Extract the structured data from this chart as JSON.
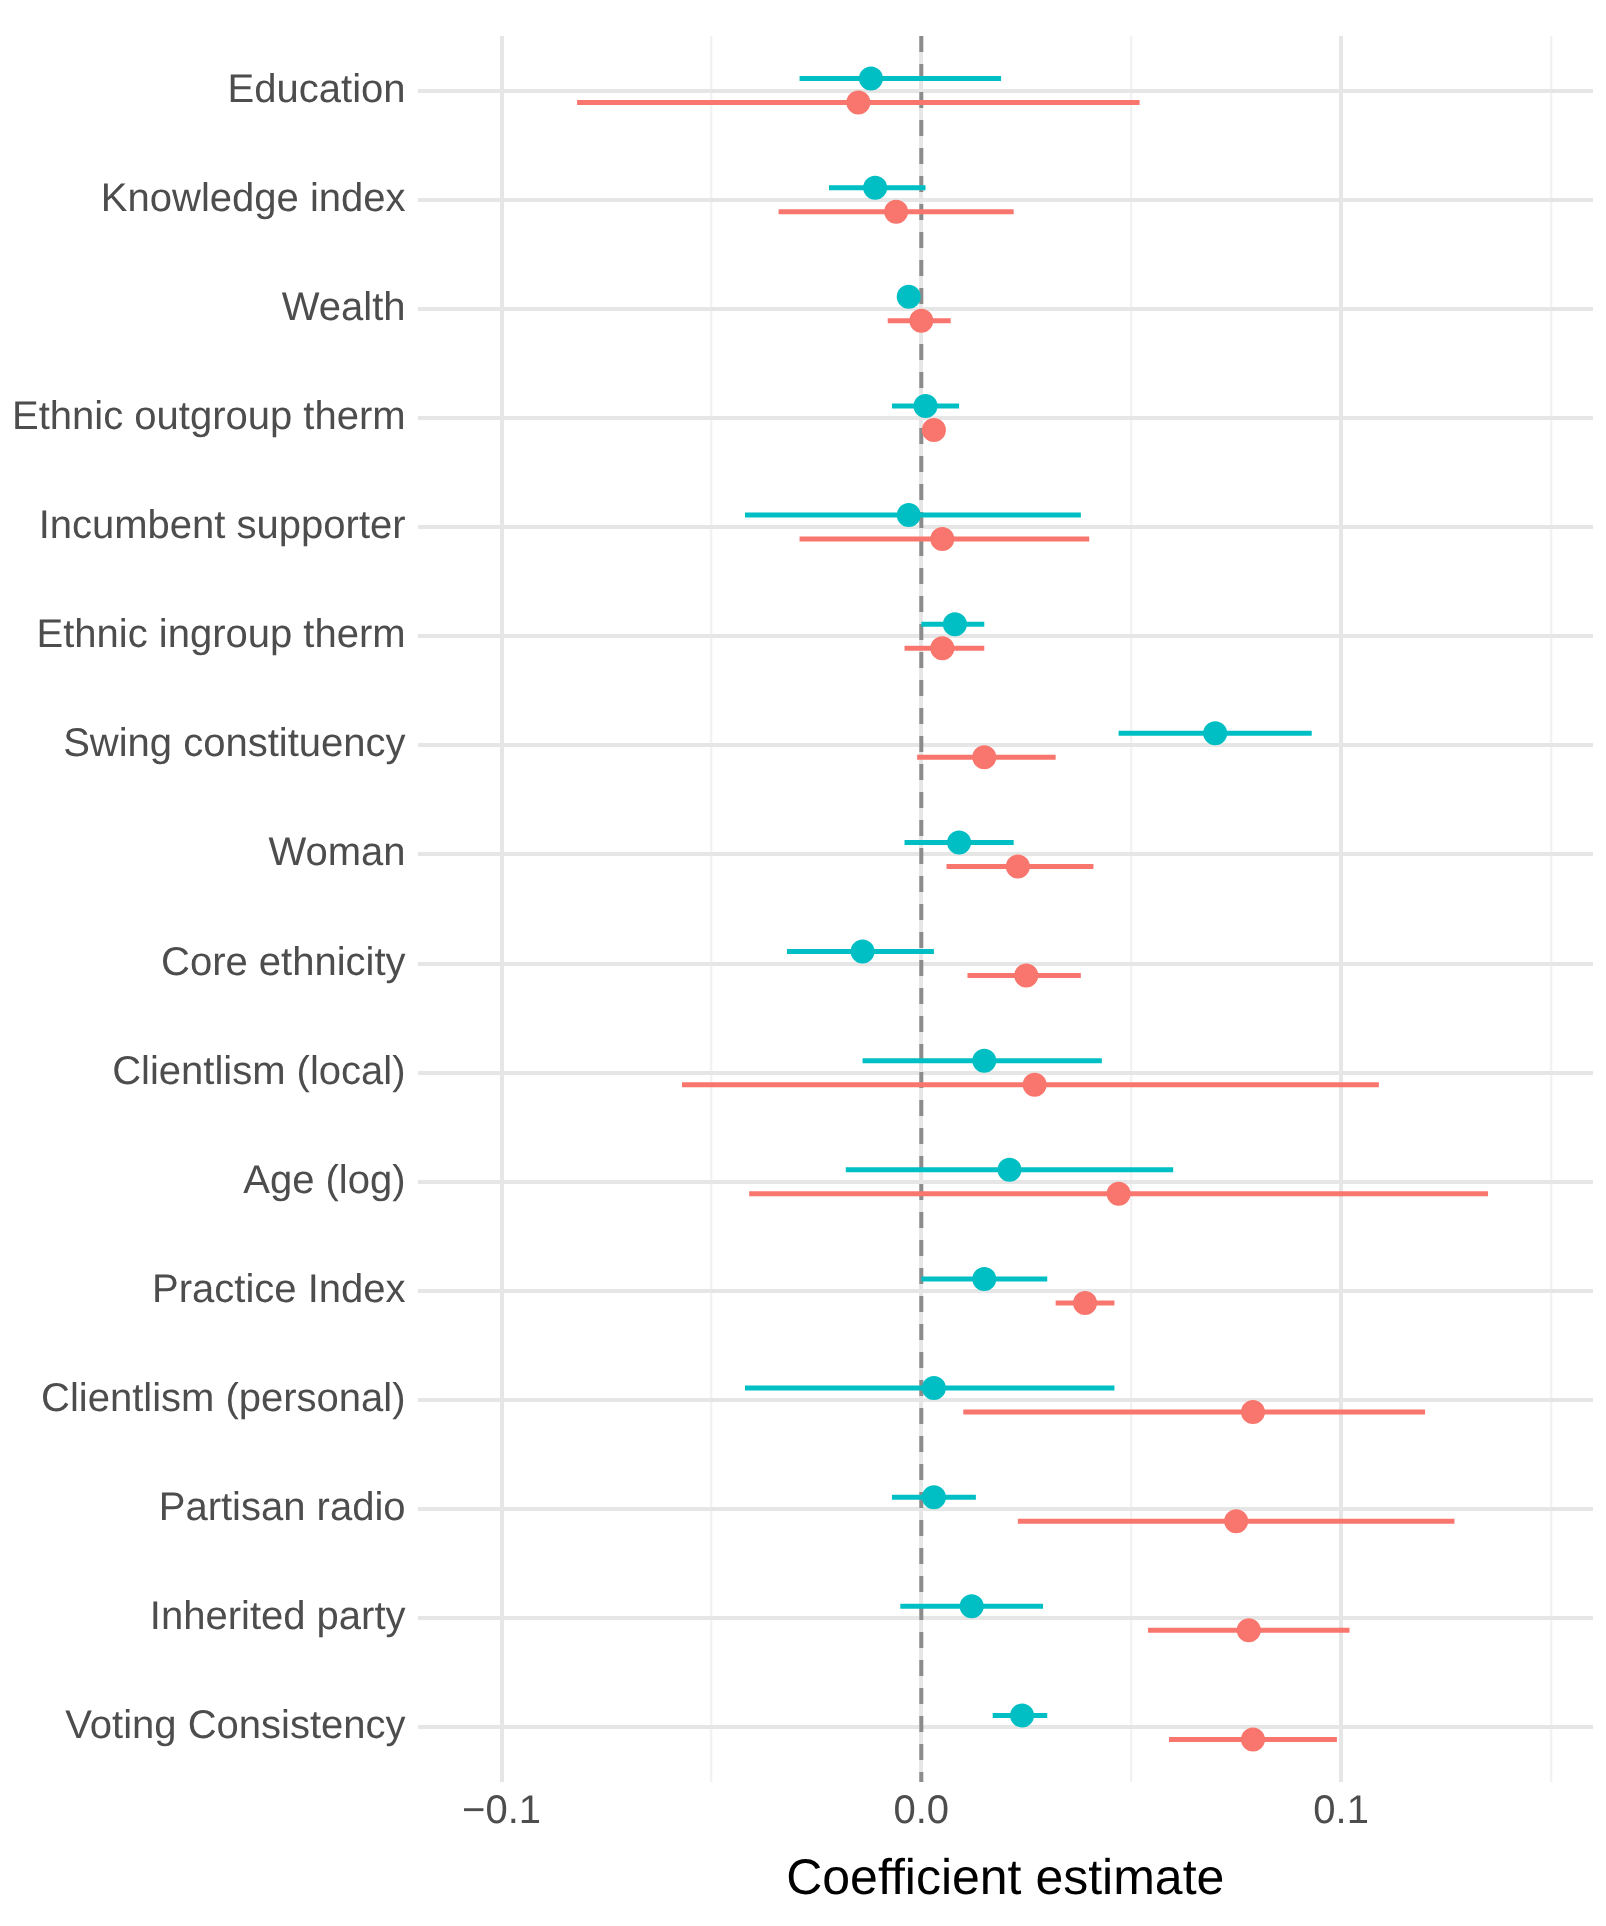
{
  "chart_data": {
    "type": "scatter",
    "orientation": "horizontal",
    "xlabel": "Coefficient estimate",
    "categories": [
      "Education",
      "Knowledge index",
      "Wealth",
      "Ethnic outgroup therm",
      "Incumbent supporter",
      "Ethnic ingroup therm",
      "Swing constituency",
      "Woman",
      "Core ethnicity",
      "Clientlism (local)",
      "Age (log)",
      "Practice Index",
      "Clientlism (personal)",
      "Partisan radio",
      "Inherited party",
      "Voting Consistency"
    ],
    "series": [
      {
        "color": "#00bfc4",
        "values": [
          -0.012,
          -0.011,
          -0.003,
          0.001,
          -0.003,
          0.008,
          0.07,
          0.009,
          -0.014,
          0.015,
          0.021,
          0.015,
          0.003,
          0.003,
          0.012,
          0.024
        ],
        "errors": [
          [
            -0.029,
            0.019
          ],
          [
            -0.022,
            0.001
          ],
          null,
          [
            -0.007,
            0.009
          ],
          [
            -0.042,
            0.038
          ],
          [
            0,
            0.015
          ],
          [
            0.047,
            0.093
          ],
          [
            -0.004,
            0.022
          ],
          [
            -0.032,
            0.003
          ],
          [
            -0.014,
            0.043
          ],
          [
            -0.018,
            0.06
          ],
          [
            0,
            0.03
          ],
          [
            -0.042,
            0.046
          ],
          [
            -0.007,
            0.013
          ],
          [
            -0.005,
            0.029
          ],
          [
            0.017,
            0.03
          ]
        ]
      },
      {
        "color": "#f8766d",
        "values": [
          -0.015,
          -0.006,
          0,
          0.003,
          0.005,
          0.005,
          0.015,
          0.023,
          0.025,
          0.027,
          0.047,
          0.039,
          0.079,
          0.075,
          0.078,
          0.079
        ],
        "errors": [
          [
            -0.082,
            0.052
          ],
          [
            -0.034,
            0.022
          ],
          [
            -0.008,
            0.007
          ],
          [
            0.001,
            0.005
          ],
          [
            -0.029,
            0.04
          ],
          [
            -0.004,
            0.015
          ],
          [
            -0.001,
            0.032
          ],
          [
            0.006,
            0.041
          ],
          [
            0.011,
            0.038
          ],
          [
            -0.057,
            0.109
          ],
          [
            -0.041,
            0.135
          ],
          [
            0.032,
            0.046
          ],
          [
            0.01,
            0.12
          ],
          [
            0.023,
            0.127
          ],
          [
            0.054,
            0.102
          ],
          [
            0.059,
            0.099
          ]
        ]
      }
    ],
    "xlim": [
      -0.12,
      0.16
    ],
    "xticks": [
      {
        "value": -0.1,
        "label": "−0.1"
      },
      {
        "value": -0.05,
        "label": null
      },
      {
        "value": 0,
        "label": "0.0"
      },
      {
        "value": 0.05,
        "label": null
      },
      0.1,
      {
        "value": 0.15,
        "label": null
      }
    ],
    "ref_lines": [
      {
        "axis": "x",
        "value": 0,
        "color": "#8c8c8c",
        "line_style": "dashed"
      }
    ],
    "grid": true,
    "legend": false,
    "marker": "circle"
  }
}
